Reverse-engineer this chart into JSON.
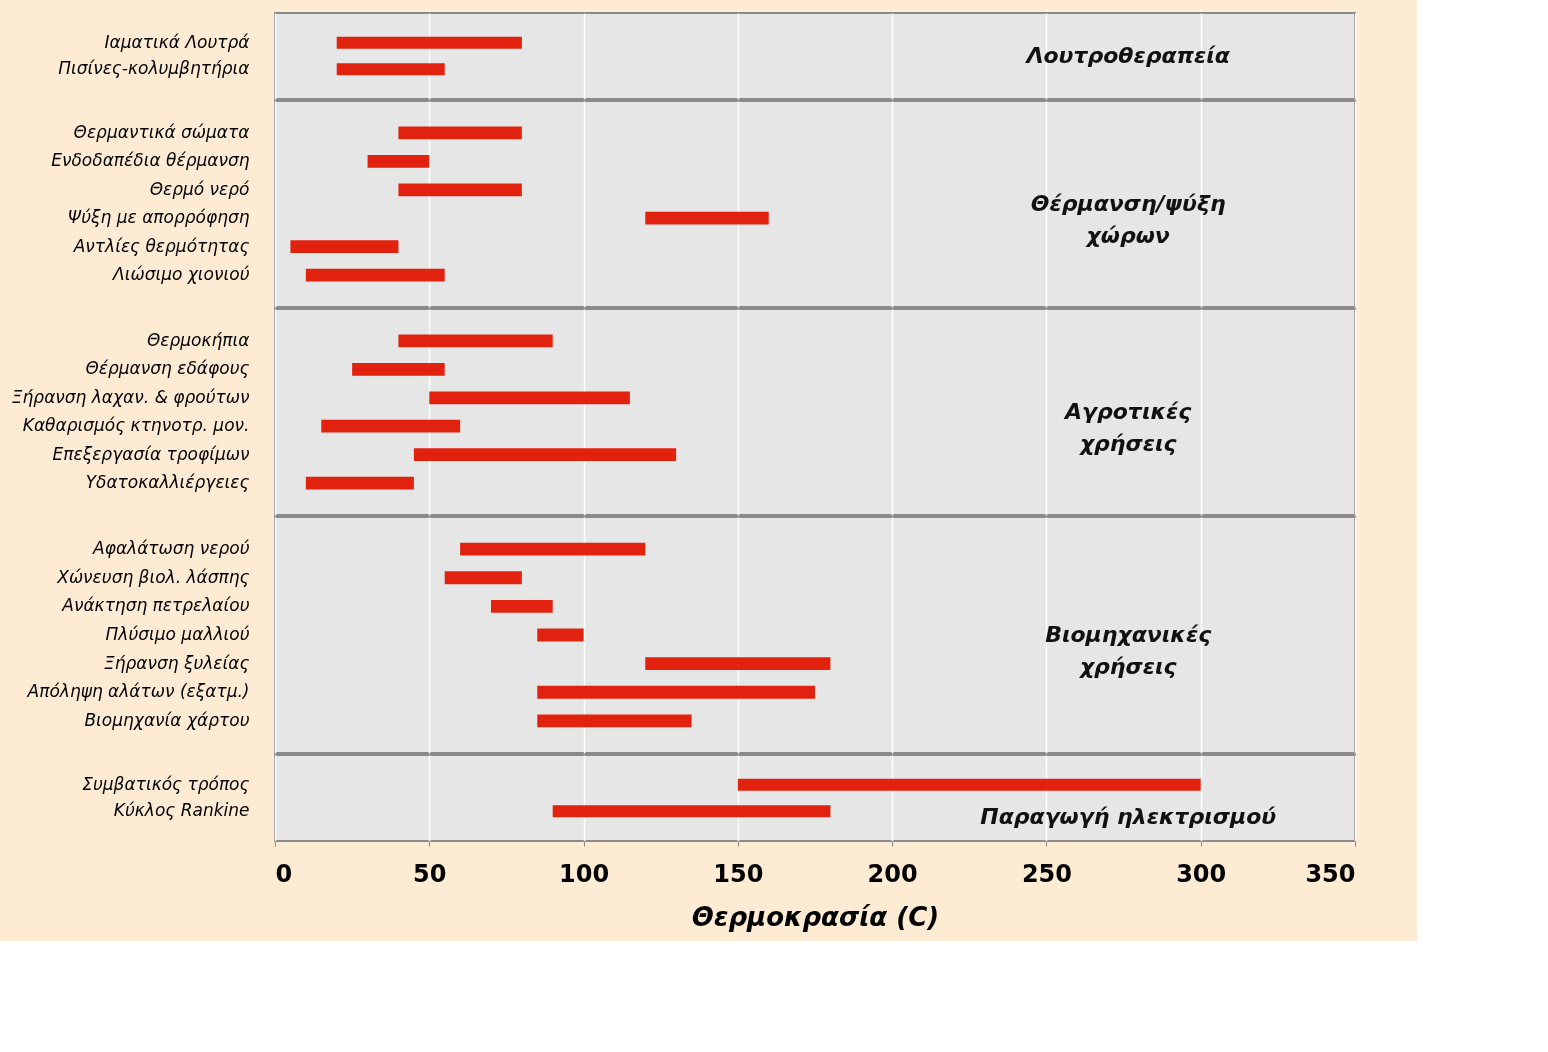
{
  "chart_data": [
    {
      "type": "bar",
      "orientation": "horizontal",
      "categories": [
        "Ιαματικά Λουτρά",
        "Πισίνες-κολυμβητήρια"
      ],
      "base": [
        20,
        20
      ],
      "values": [
        60,
        35
      ],
      "color": "#e0220f",
      "xlim": [
        0,
        350
      ],
      "xticks": [
        0,
        50,
        100,
        150,
        200,
        250,
        300,
        350
      ],
      "grid": "x",
      "tick_labels": "y",
      "annotations": [
        "Λουτροθεραπεία"
      ]
    },
    {
      "type": "bar",
      "orientation": "horizontal",
      "categories": [
        "Θερμαντικά σώματα",
        "Ενδοδαπέδια θέρμανση",
        "Θερμό νερό",
        "Ψύξη με απορρόφηση",
        "Αντλίες θερμότητας",
        "Λιώσιμο χιονιού"
      ],
      "base": [
        40,
        30,
        40,
        120,
        5,
        10
      ],
      "values": [
        40,
        20,
        40,
        40,
        35,
        45
      ],
      "color": "#e0220f",
      "xlim": [
        0,
        350
      ],
      "xticks": [
        0,
        50,
        100,
        150,
        200,
        250,
        300,
        350
      ],
      "grid": "x",
      "tick_labels": "y",
      "annotations": [
        "Θέρμανση/ψύξη\nχώρων"
      ]
    },
    {
      "type": "bar",
      "orientation": "horizontal",
      "categories": [
        "Θερμοκήπια",
        "Θέρμανση εδάφους",
        "Ξήρανση λαχαν. & φρούτων",
        "Καθαρισμός κτηνοτρ. μον.",
        "Επεξεργασία τροφίμων",
        "Υδατοκαλλιέργειες"
      ],
      "base": [
        40,
        25,
        50,
        15,
        45,
        10
      ],
      "values": [
        50,
        30,
        65,
        45,
        85,
        35
      ],
      "color": "#e0220f",
      "xlim": [
        0,
        350
      ],
      "xticks": [
        0,
        50,
        100,
        150,
        200,
        250,
        300,
        350
      ],
      "grid": "x",
      "tick_labels": "y",
      "annotations": [
        "Αγροτικές\nχρήσεις"
      ]
    },
    {
      "type": "bar",
      "orientation": "horizontal",
      "categories": [
        "Αφαλάτωση νερού",
        "Χώνευση βιολ. λάσπης",
        "Ανάκτηση πετρελαίου",
        "Πλύσιμο μαλλιού",
        "Ξήρανση ξυλείας",
        "Απόληψη αλάτων (εξατμ.)",
        "Βιομηχανία χάρτου"
      ],
      "base": [
        60,
        55,
        70,
        85,
        120,
        85,
        85
      ],
      "values": [
        60,
        25,
        20,
        15,
        60,
        90,
        50
      ],
      "color": "#e0220f",
      "xlim": [
        0,
        350
      ],
      "xticks": [
        0,
        50,
        100,
        150,
        200,
        250,
        300,
        350
      ],
      "grid": "x",
      "tick_labels": "y",
      "annotations": [
        "Βιομηχανικές\nχρήσεις"
      ]
    },
    {
      "type": "bar",
      "orientation": "horizontal",
      "categories": [
        "Συμβατικός τρόπος",
        "Κύκλος Rankine"
      ],
      "base": [
        150,
        90
      ],
      "values": [
        150,
        90
      ],
      "color": "#e0220f",
      "xlim": [
        0,
        350
      ],
      "xticks": [
        0,
        50,
        100,
        150,
        200,
        250,
        300,
        350
      ],
      "grid": "x",
      "xlabel": "Θερμοκρασία (C)",
      "annotations": [
        "Παραγωγή ηλεκτρισμού"
      ]
    }
  ]
}
